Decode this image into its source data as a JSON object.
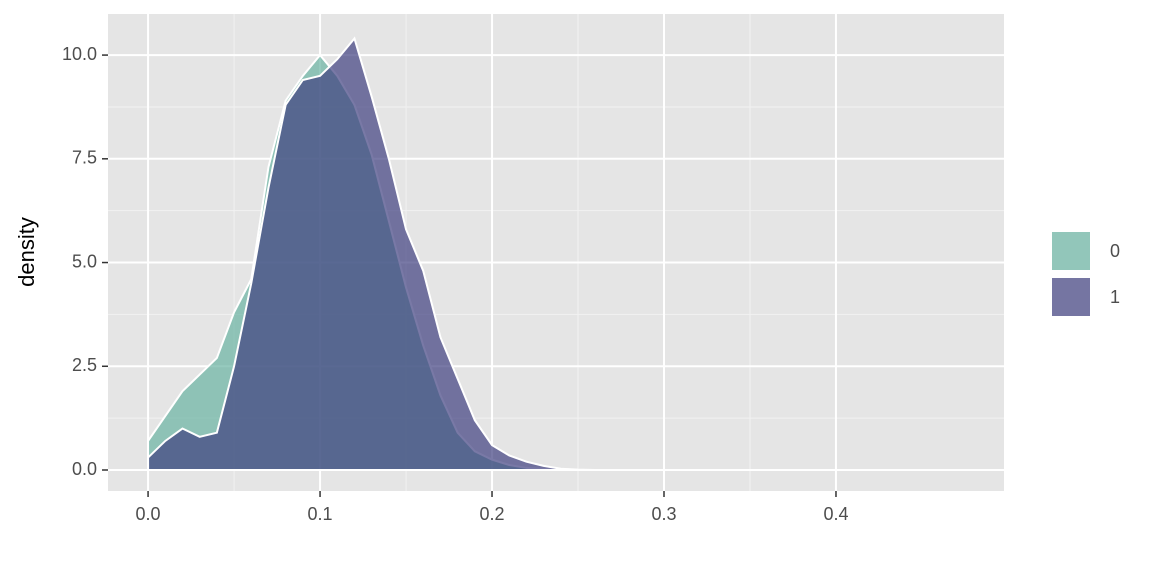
{
  "chart_data": {
    "type": "density",
    "y_label": "density",
    "x": [
      0,
      0.01,
      0.02,
      0.03,
      0.04,
      0.05,
      0.06,
      0.07,
      0.08,
      0.09,
      0.1,
      0.11,
      0.12,
      0.13,
      0.14,
      0.15,
      0.16,
      0.17,
      0.18,
      0.19,
      0.2,
      0.21,
      0.22,
      0.23,
      0.24,
      0.25,
      0.26,
      0.27,
      0.28,
      0.29,
      0.3,
      0.31,
      0.32,
      0.33,
      0.34,
      0.35,
      0.36,
      0.37,
      0.38,
      0.39,
      0.4,
      0.41,
      0.42,
      0.43,
      0.44,
      0.45,
      0.46,
      0.47
    ],
    "series": [
      {
        "name": "0",
        "color": "#69b3a2",
        "values": [
          0.7,
          1.3,
          1.9,
          2.3,
          2.7,
          3.8,
          4.6,
          7.3,
          8.9,
          9.5,
          10.0,
          9.5,
          8.8,
          7.6,
          6.0,
          4.4,
          3.0,
          1.8,
          0.9,
          0.45,
          0.25,
          0.12,
          0.05,
          0.02,
          0.01,
          0,
          0,
          0,
          0,
          0,
          0,
          0,
          0,
          0,
          0,
          0,
          0,
          0,
          0,
          0,
          0,
          0,
          0,
          0,
          0,
          0,
          0,
          0
        ]
      },
      {
        "name": "1",
        "color": "#404080",
        "values": [
          0.3,
          0.7,
          1.0,
          0.8,
          0.9,
          2.5,
          4.5,
          6.8,
          8.8,
          9.4,
          9.5,
          9.9,
          10.4,
          9.0,
          7.5,
          5.8,
          4.8,
          3.2,
          2.2,
          1.2,
          0.6,
          0.35,
          0.2,
          0.1,
          0.03,
          0.01,
          0,
          0,
          0,
          0,
          0,
          0,
          0,
          0,
          0,
          0,
          0,
          0,
          0,
          0,
          0,
          0,
          0,
          0,
          0,
          0,
          0,
          0
        ]
      }
    ],
    "xlim": [
      -0.0233,
      0.4977
    ],
    "xticks": [
      {
        "value": 0,
        "label": "0.0"
      },
      0.1,
      0.2,
      0.3,
      0.4
    ],
    "ylim": [
      -0.506,
      10.99
    ],
    "yticks": [
      {
        "value": 0,
        "label": "0.0"
      },
      2.5,
      {
        "value": 5,
        "label": "5.0"
      },
      7.5,
      {
        "value": 10,
        "label": "10.0"
      }
    ],
    "grid": true,
    "legend": "right"
  }
}
